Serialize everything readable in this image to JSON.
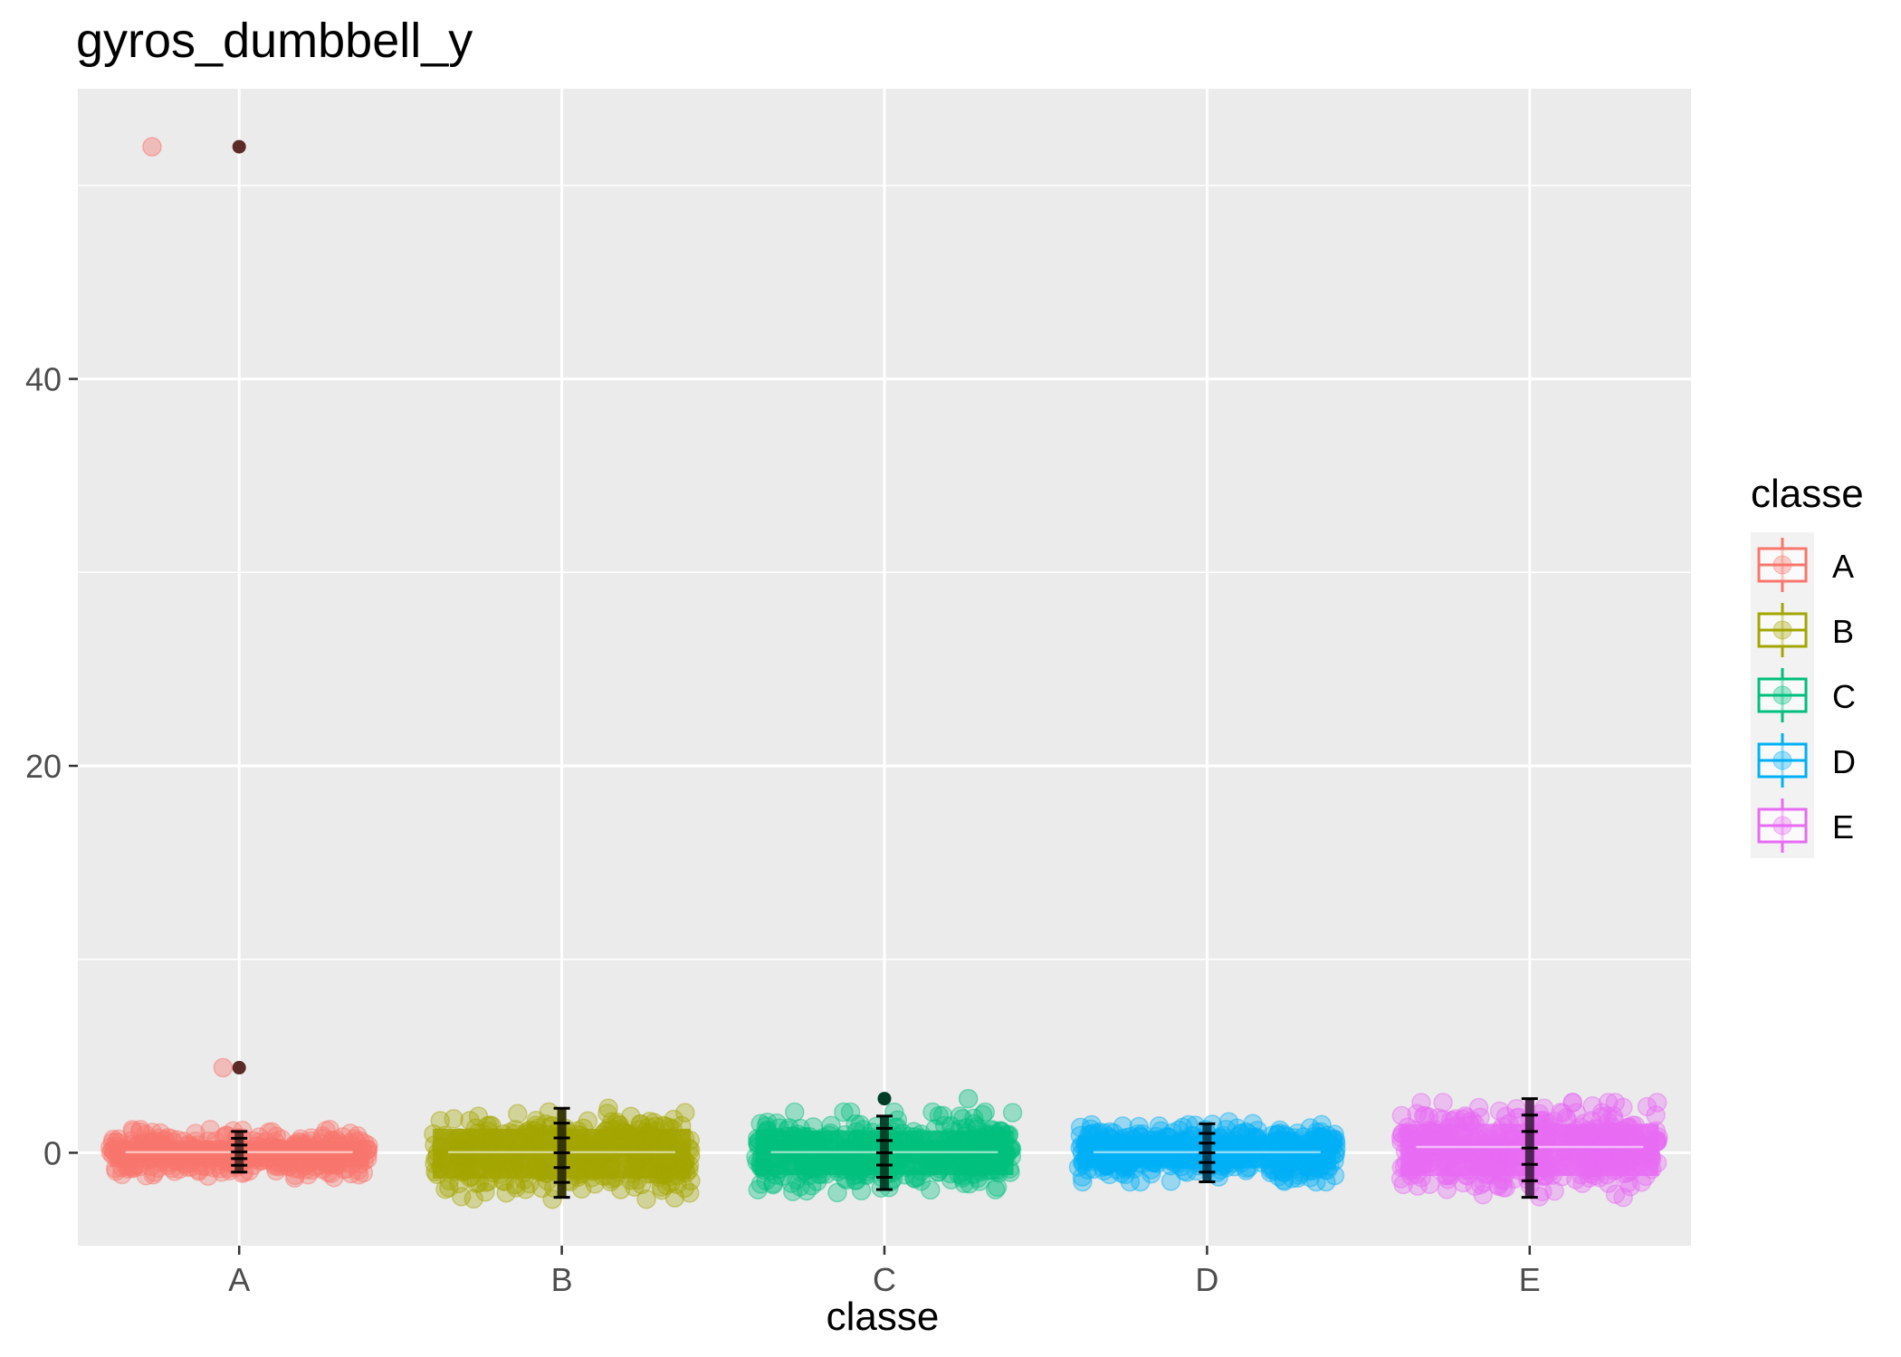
{
  "chart_data": {
    "type": "boxplot",
    "title": "gyros_dumbbell_y",
    "xlabel": "classe",
    "ylabel": "",
    "categories": [
      "A",
      "B",
      "C",
      "D",
      "E"
    ],
    "ylim": [
      -4.8,
      55.0
    ],
    "yticks": [
      0,
      20,
      40
    ],
    "grid": true,
    "legend": {
      "title": "classe",
      "placement": "right",
      "entries": [
        "A",
        "B",
        "C",
        "D",
        "E"
      ]
    },
    "colors": {
      "A": "#F8766D",
      "B": "#A3A500",
      "C": "#00BF7D",
      "D": "#00B0F6",
      "E": "#E76BF3"
    },
    "outlier_colors": {
      "A": "#5C2B28",
      "B": "#2E2E00",
      "C": "#003D27",
      "D": "#003A52",
      "E": "#4A1F4E"
    },
    "series": [
      {
        "category": "A",
        "median": 0.03,
        "spread_low": -1.3,
        "spread_high": 1.2,
        "outliers": [
          52.0,
          4.4
        ],
        "outlier_band": [
          -1.0,
          1.1
        ]
      },
      {
        "category": "B",
        "median": 0.03,
        "spread_low": -2.4,
        "spread_high": 2.3,
        "outliers": [],
        "outlier_band": [
          -2.3,
          2.3
        ]
      },
      {
        "category": "C",
        "median": 0.03,
        "spread_low": -2.1,
        "spread_high": 2.1,
        "outliers": [
          2.8
        ],
        "outlier_band": [
          -1.9,
          1.9
        ]
      },
      {
        "category": "D",
        "median": 0.03,
        "spread_low": -1.5,
        "spread_high": 1.6,
        "outliers": [],
        "outlier_band": [
          -1.5,
          1.5
        ]
      },
      {
        "category": "E",
        "median": 0.3,
        "spread_low": -2.3,
        "spread_high": 2.6,
        "outliers": [],
        "outlier_band": [
          -2.3,
          2.8
        ]
      }
    ],
    "jitter_extras": [
      {
        "category": "A",
        "x_offset": -0.27,
        "y": 52.0
      },
      {
        "category": "A",
        "x_offset": -0.05,
        "y": 4.4
      },
      {
        "category": "C",
        "x_offset": 0.26,
        "y": 2.8
      }
    ]
  }
}
